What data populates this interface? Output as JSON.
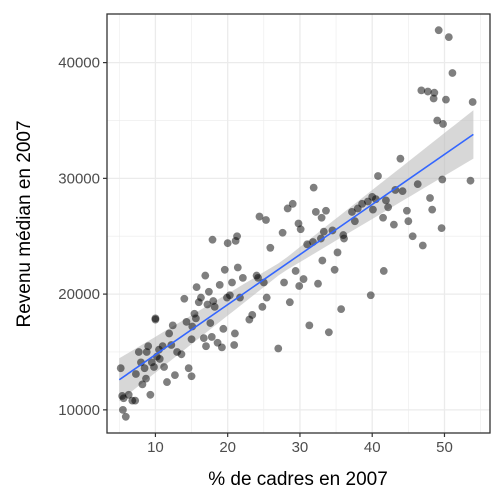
{
  "chart_data": {
    "type": "scatter",
    "xlabel": "% de cadres en 2007",
    "ylabel": "Revenu médian en 2007",
    "xlim": [
      3.3,
      56.3
    ],
    "ylim": [
      8000,
      44200
    ],
    "x_ticks": [
      10,
      20,
      30,
      40,
      50
    ],
    "x_tick_labels": [
      "10",
      "20",
      "30",
      "40",
      "50"
    ],
    "y_ticks": [
      10000,
      20000,
      30000,
      40000
    ],
    "y_tick_labels": [
      "10000",
      "20000",
      "30000",
      "40000"
    ],
    "grid": true,
    "trend_line": {
      "method": "linear",
      "start": [
        5,
        12600
      ],
      "end": [
        54,
        33800
      ],
      "band": true
    },
    "colors": {
      "points": "#000000",
      "trend": "#3366ff",
      "band": "#bdbdbd",
      "grid": "#ebebeb",
      "axis_text": "#4d4d4d"
    },
    "points": [
      [
        5.2,
        13600
      ],
      [
        5.4,
        11200
      ],
      [
        5.6,
        11000
      ],
      [
        5.5,
        10000
      ],
      [
        5.9,
        9400
      ],
      [
        6.3,
        11300
      ],
      [
        6.8,
        10800
      ],
      [
        7.2,
        10800
      ],
      [
        7.3,
        13100
      ],
      [
        7.7,
        15000
      ],
      [
        8.0,
        14100
      ],
      [
        8.2,
        12200
      ],
      [
        8.5,
        13600
      ],
      [
        8.7,
        12700
      ],
      [
        8.8,
        15000
      ],
      [
        9.0,
        15500
      ],
      [
        9.3,
        11300
      ],
      [
        9.5,
        14100
      ],
      [
        9.8,
        13700
      ],
      [
        10.0,
        17800
      ],
      [
        10.0,
        17900
      ],
      [
        10.2,
        14600
      ],
      [
        10.5,
        15200
      ],
      [
        10.6,
        14400
      ],
      [
        11.0,
        15500
      ],
      [
        11.2,
        13700
      ],
      [
        11.6,
        12400
      ],
      [
        11.9,
        16600
      ],
      [
        12.2,
        15600
      ],
      [
        12.4,
        17300
      ],
      [
        12.7,
        13000
      ],
      [
        13.0,
        15000
      ],
      [
        13.6,
        14800
      ],
      [
        14.0,
        19600
      ],
      [
        14.3,
        17600
      ],
      [
        14.6,
        13600
      ],
      [
        15.0,
        12900
      ],
      [
        15.0,
        16100
      ],
      [
        15.1,
        17200
      ],
      [
        15.4,
        18300
      ],
      [
        15.6,
        17900
      ],
      [
        15.7,
        20600
      ],
      [
        16.0,
        19300
      ],
      [
        16.3,
        19700
      ],
      [
        16.7,
        16200
      ],
      [
        16.9,
        21600
      ],
      [
        17.0,
        15500
      ],
      [
        17.2,
        19100
      ],
      [
        17.4,
        20200
      ],
      [
        17.6,
        17500
      ],
      [
        17.8,
        16300
      ],
      [
        17.9,
        24700
      ],
      [
        18.0,
        19400
      ],
      [
        18.2,
        18900
      ],
      [
        18.6,
        15800
      ],
      [
        18.9,
        20800
      ],
      [
        19.2,
        15400
      ],
      [
        19.4,
        17000
      ],
      [
        19.6,
        22100
      ],
      [
        19.9,
        19700
      ],
      [
        20.0,
        24400
      ],
      [
        20.3,
        19900
      ],
      [
        20.6,
        21000
      ],
      [
        20.9,
        15600
      ],
      [
        21.0,
        16600
      ],
      [
        21.1,
        24600
      ],
      [
        21.3,
        25000
      ],
      [
        21.4,
        22300
      ],
      [
        21.7,
        19700
      ],
      [
        22.1,
        21400
      ],
      [
        23.0,
        17800
      ],
      [
        23.4,
        18200
      ],
      [
        24.0,
        21600
      ],
      [
        24.2,
        21400
      ],
      [
        24.4,
        26700
      ],
      [
        24.8,
        18900
      ],
      [
        25.0,
        21000
      ],
      [
        25.3,
        26400
      ],
      [
        25.4,
        19700
      ],
      [
        25.9,
        24000
      ],
      [
        27.0,
        15300
      ],
      [
        27.6,
        25300
      ],
      [
        27.8,
        21000
      ],
      [
        28.3,
        27400
      ],
      [
        28.6,
        19300
      ],
      [
        29.0,
        27800
      ],
      [
        29.4,
        22000
      ],
      [
        29.8,
        26100
      ],
      [
        29.9,
        20700
      ],
      [
        30.1,
        25600
      ],
      [
        30.5,
        21300
      ],
      [
        31.0,
        24300
      ],
      [
        31.3,
        17300
      ],
      [
        31.8,
        24500
      ],
      [
        31.9,
        29200
      ],
      [
        32.2,
        27100
      ],
      [
        32.5,
        20900
      ],
      [
        32.9,
        24800
      ],
      [
        33.0,
        26600
      ],
      [
        33.1,
        22900
      ],
      [
        33.3,
        25400
      ],
      [
        33.6,
        27200
      ],
      [
        34.0,
        16700
      ],
      [
        34.5,
        25500
      ],
      [
        34.8,
        22100
      ],
      [
        35.2,
        23600
      ],
      [
        35.7,
        18700
      ],
      [
        36.0,
        25100
      ],
      [
        36.1,
        24800
      ],
      [
        37.2,
        27100
      ],
      [
        37.6,
        26300
      ],
      [
        38.0,
        27400
      ],
      [
        38.6,
        27800
      ],
      [
        39.4,
        28000
      ],
      [
        39.8,
        19900
      ],
      [
        40.0,
        28400
      ],
      [
        40.1,
        27300
      ],
      [
        40.5,
        28200
      ],
      [
        40.8,
        30200
      ],
      [
        41.5,
        26600
      ],
      [
        41.6,
        22000
      ],
      [
        41.9,
        28100
      ],
      [
        42.2,
        27500
      ],
      [
        43.0,
        26000
      ],
      [
        43.2,
        29000
      ],
      [
        43.9,
        31700
      ],
      [
        44.2,
        28900
      ],
      [
        44.8,
        27200
      ],
      [
        45.0,
        26300
      ],
      [
        45.6,
        25000
      ],
      [
        46.3,
        29500
      ],
      [
        46.8,
        37600
      ],
      [
        47.0,
        24200
      ],
      [
        47.7,
        37500
      ],
      [
        48.0,
        28300
      ],
      [
        48.3,
        27300
      ],
      [
        48.5,
        36900
      ],
      [
        48.6,
        37400
      ],
      [
        49.0,
        35000
      ],
      [
        49.2,
        42800
      ],
      [
        49.6,
        25700
      ],
      [
        49.7,
        29900
      ],
      [
        49.8,
        34700
      ],
      [
        50.2,
        36800
      ],
      [
        50.6,
        42200
      ],
      [
        51.1,
        39100
      ],
      [
        53.6,
        29800
      ],
      [
        53.9,
        36600
      ]
    ]
  }
}
